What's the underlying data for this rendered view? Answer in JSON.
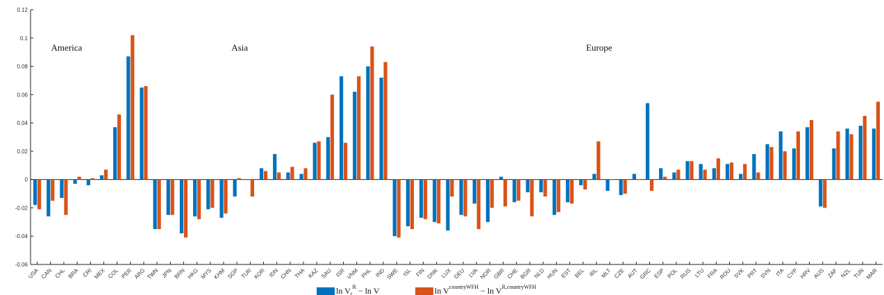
{
  "chart_data": {
    "type": "bar",
    "categories": [
      "USA",
      "CAN",
      "CHL",
      "BRA",
      "CRI",
      "MEX",
      "COL",
      "PER",
      "ARG",
      "TWN",
      "JPN",
      "BRN",
      "HKG",
      "MYS",
      "KHM",
      "SGP",
      "TUR",
      "KOR",
      "IDN",
      "CHN",
      "THA",
      "KAZ",
      "SAU",
      "ISR",
      "VNM",
      "PHL",
      "IND",
      "SWE",
      "ISL",
      "FIN",
      "DNK",
      "LUX",
      "DEU",
      "LVA",
      "NOR",
      "GBR",
      "CHE",
      "BGR",
      "NLD",
      "HUN",
      "EST",
      "BEL",
      "IRL",
      "MLT",
      "CZE",
      "AUT",
      "GRC",
      "ESP",
      "POL",
      "RUS",
      "LTU",
      "FRA",
      "ROU",
      "SVK",
      "PRT",
      "SVN",
      "ITA",
      "CYP",
      "HRV",
      "AUS",
      "ZAF",
      "NZL",
      "TUN",
      "MAR"
    ],
    "series": [
      {
        "name": "ln V_r − ln V^R",
        "color": "#0072BD",
        "values": [
          -0.018,
          -0.026,
          -0.013,
          -0.003,
          -0.004,
          0.003,
          0.037,
          0.087,
          0.065,
          -0.035,
          -0.025,
          -0.038,
          -0.026,
          -0.021,
          -0.027,
          -0.012,
          0.0,
          0.008,
          0.018,
          0.005,
          0.004,
          0.026,
          0.03,
          0.073,
          0.062,
          0.08,
          0.072,
          -0.04,
          -0.033,
          -0.027,
          -0.03,
          -0.036,
          -0.025,
          -0.017,
          -0.03,
          0.002,
          -0.016,
          -0.009,
          -0.009,
          -0.025,
          -0.016,
          -0.004,
          0.004,
          -0.008,
          -0.011,
          0.004,
          0.054,
          0.008,
          0.005,
          0.013,
          0.011,
          0.008,
          0.011,
          0.004,
          0.018,
          0.025,
          0.034,
          0.022,
          0.037,
          -0.019,
          0.022,
          0.036,
          0.038,
          0.036
        ]
      },
      {
        "name": "ln V^{countryWFH} − ln V^{R,countryWFH}",
        "color": "#D95319",
        "values": [
          -0.021,
          -0.015,
          -0.025,
          0.002,
          0.001,
          0.007,
          0.046,
          0.102,
          0.066,
          -0.035,
          -0.025,
          -0.041,
          -0.028,
          -0.02,
          -0.024,
          0.001,
          -0.012,
          0.006,
          0.005,
          0.009,
          0.008,
          0.027,
          0.06,
          0.026,
          0.073,
          0.094,
          0.083,
          -0.041,
          -0.035,
          -0.028,
          -0.031,
          -0.012,
          -0.026,
          -0.035,
          -0.02,
          -0.019,
          -0.015,
          -0.026,
          -0.012,
          -0.023,
          -0.017,
          -0.007,
          0.027,
          0.0,
          -0.01,
          0.0,
          -0.008,
          0.002,
          0.007,
          0.013,
          0.007,
          0.015,
          0.012,
          0.011,
          0.005,
          0.023,
          0.02,
          0.034,
          0.042,
          -0.02,
          0.034,
          0.032,
          0.045,
          0.055
        ]
      }
    ],
    "ylim": [
      -0.06,
      0.12
    ],
    "yticks": [
      "-0.06",
      "-0.04",
      "-0.02",
      "0",
      "0.02",
      "0.04",
      "0.06",
      "0.08",
      "0.1",
      "0.12"
    ],
    "annotations": [
      {
        "text": "America",
        "at_category": "CHL"
      },
      {
        "text": "Asia",
        "at_category": "SGP"
      },
      {
        "text": "Europe",
        "at_category": "IRL"
      }
    ],
    "legend": {
      "placement": "bottom",
      "entries": [
        {
          "base": "ln V",
          "sub": "r",
          "mid": " − ln V",
          "sup": "R",
          "tail": ""
        },
        {
          "base": "ln V",
          "sup": "countryWFH",
          "mid": " − ln V",
          "sup2": "R,countryWFH",
          "tail": ""
        }
      ]
    },
    "grid": false
  }
}
